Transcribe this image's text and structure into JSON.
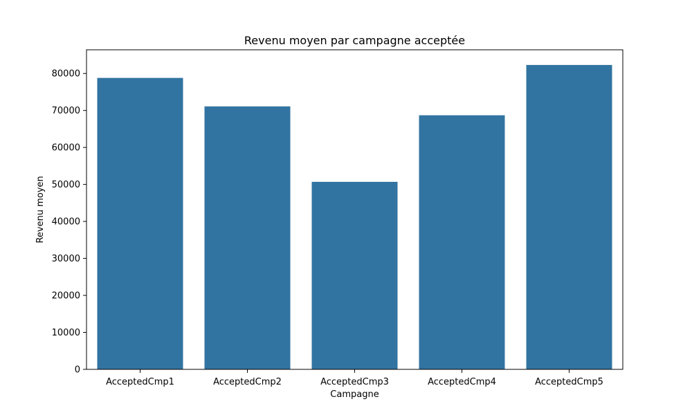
{
  "chart_data": {
    "type": "bar",
    "title": "Revenu moyen par campagne acceptée",
    "xlabel": "Campagne",
    "ylabel": "Revenu moyen",
    "categories": [
      "AcceptedCmp1",
      "AcceptedCmp2",
      "AcceptedCmp3",
      "AcceptedCmp4",
      "AcceptedCmp5"
    ],
    "values": [
      78800,
      71100,
      50700,
      68700,
      82300
    ],
    "ylim": [
      0,
      86400
    ],
    "yticks": [
      0,
      10000,
      20000,
      30000,
      40000,
      50000,
      60000,
      70000,
      80000
    ],
    "ytick_labels": [
      "0",
      "10000",
      "20000",
      "30000",
      "40000",
      "50000",
      "60000",
      "70000",
      "80000"
    ],
    "grid": false,
    "bar_color": "#3274a1"
  }
}
